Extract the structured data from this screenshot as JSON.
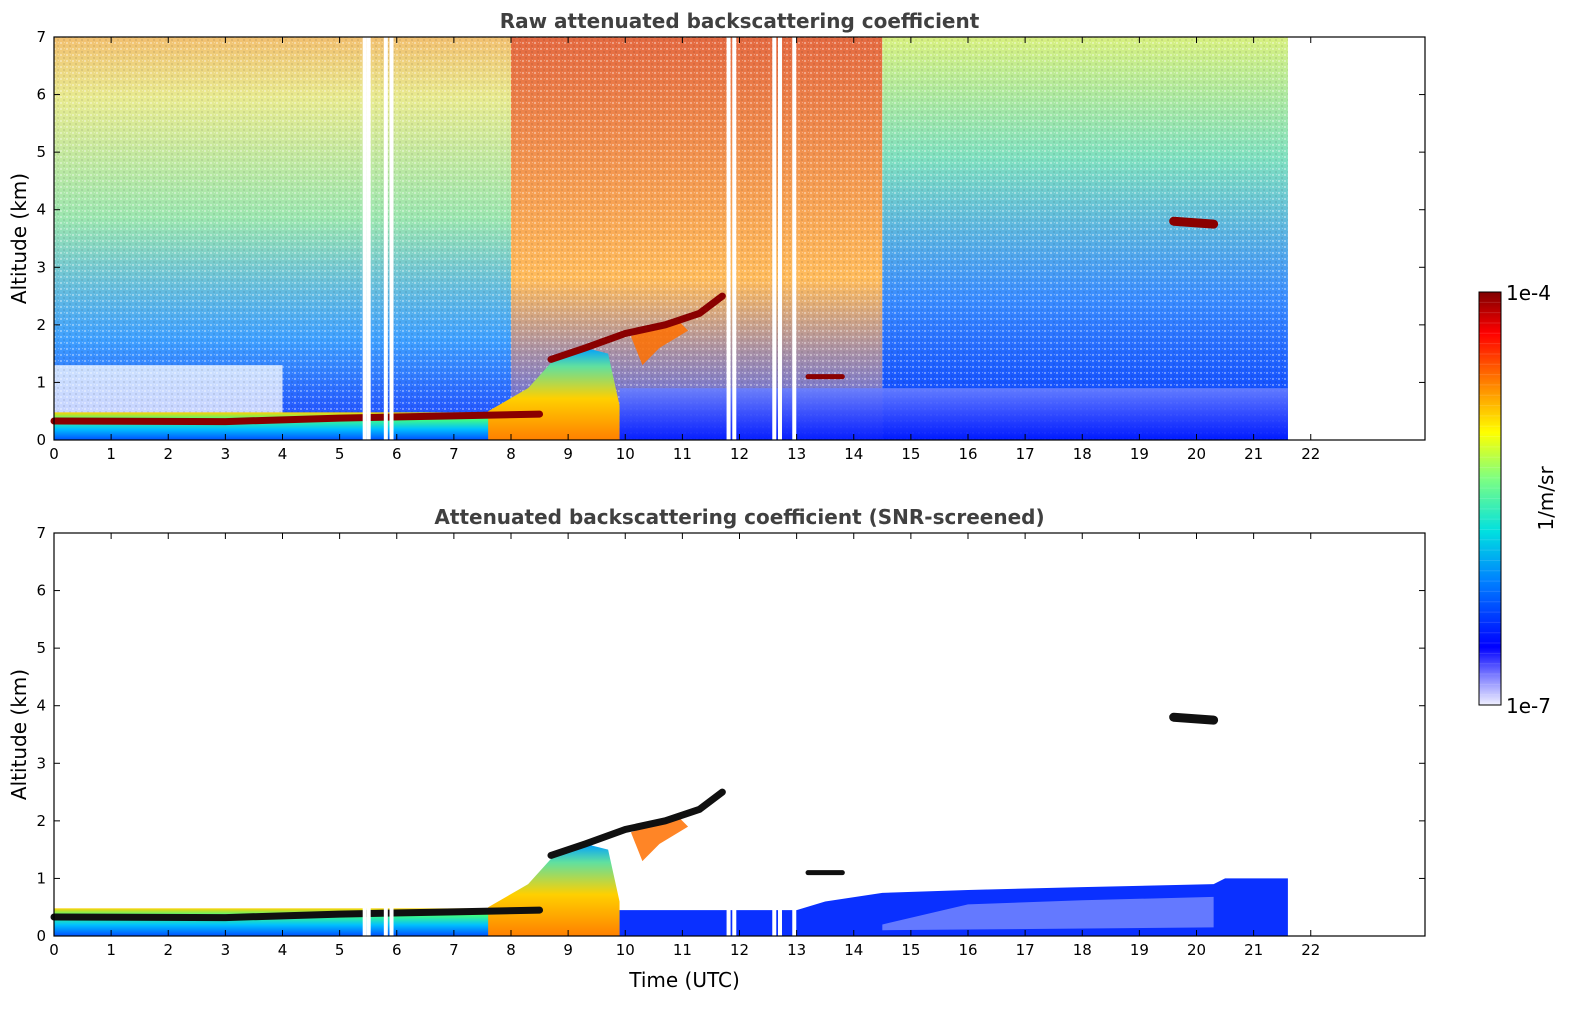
{
  "chart_data": [
    {
      "type": "heatmap",
      "title": "Raw attenuated backscattering coefficient",
      "xlabel": "",
      "ylabel": "Altitude (km)",
      "xlim": [
        0,
        24
      ],
      "ylim": [
        0,
        7
      ],
      "xticks": [
        "0",
        "1",
        "2",
        "3",
        "4",
        "5",
        "6",
        "7",
        "8",
        "9",
        "10",
        "11",
        "12",
        "13",
        "14",
        "15",
        "16",
        "17",
        "18",
        "19",
        "20",
        "21",
        "22"
      ],
      "yticks": [
        "0",
        "1",
        "2",
        "3",
        "4",
        "5",
        "6",
        "7"
      ],
      "data_extent_hours": [
        0,
        21.6
      ],
      "missing_profiles_hours": [
        5.43,
        5.5,
        5.8,
        5.9,
        11.8,
        11.9,
        12.6,
        12.7,
        12.95
      ],
      "features": [
        {
          "name": "boundary layer top",
          "t": [
            0,
            3,
            5,
            7,
            8.5
          ],
          "alt_km": [
            0.33,
            0.32,
            0.38,
            0.42,
            0.45
          ]
        },
        {
          "name": "rising aerosol layer",
          "t": [
            8.7,
            9.3,
            10,
            10.7,
            11.3,
            11.7
          ],
          "alt_km": [
            1.4,
            1.6,
            1.85,
            2.0,
            2.2,
            2.5
          ]
        },
        {
          "name": "elevated cloud",
          "t": [
            19.6,
            20.3
          ],
          "alt_km": [
            3.8,
            3.75
          ]
        },
        {
          "name": "small cloud",
          "t": [
            13.2,
            13.8
          ],
          "alt_km": [
            1.1,
            1.1
          ]
        }
      ]
    },
    {
      "type": "heatmap",
      "title": "Attenuated backscattering coefficient (SNR-screened)",
      "xlabel": "Time (UTC)",
      "ylabel": "Altitude (km)",
      "xlim": [
        0,
        24
      ],
      "ylim": [
        0,
        7
      ],
      "xticks": [
        "0",
        "1",
        "2",
        "3",
        "4",
        "5",
        "6",
        "7",
        "8",
        "9",
        "10",
        "11",
        "12",
        "13",
        "14",
        "15",
        "16",
        "17",
        "18",
        "19",
        "20",
        "21",
        "22"
      ],
      "yticks": [
        "0",
        "1",
        "2",
        "3",
        "4",
        "5",
        "6",
        "7"
      ],
      "data_extent_hours": [
        0,
        21.6
      ],
      "colorbar": {
        "label": "1/m/sr",
        "min_label": "1e-7",
        "max_label": "1e-4",
        "scale": "log"
      }
    }
  ]
}
